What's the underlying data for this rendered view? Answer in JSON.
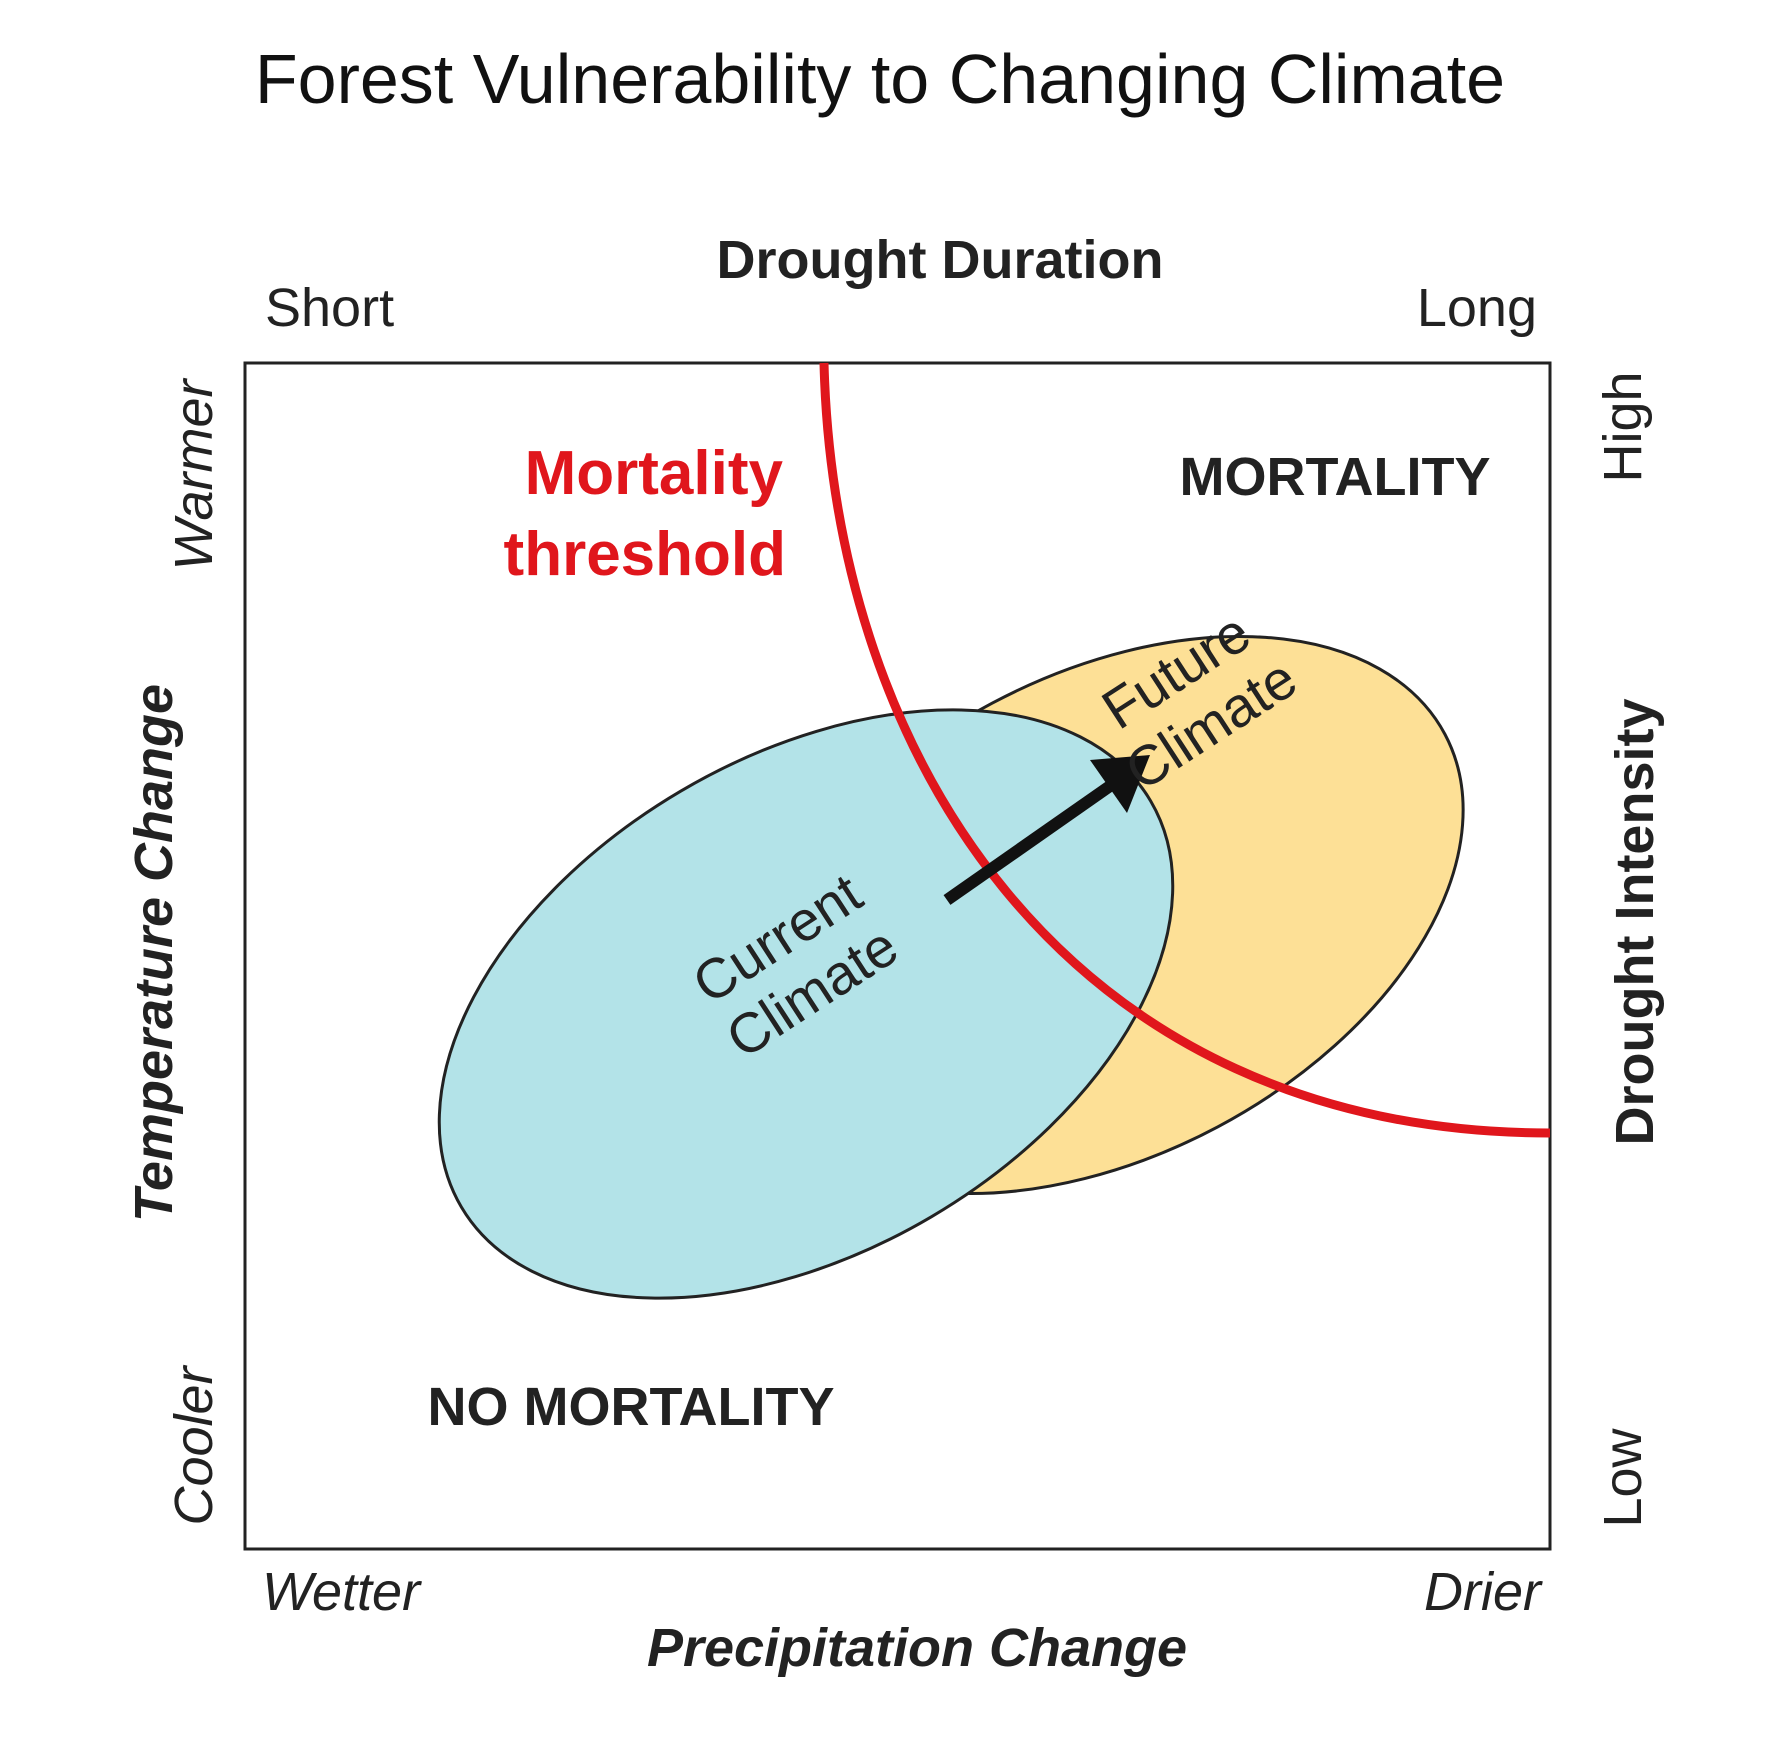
{
  "title": "Forest Vulnerability to Changing Climate",
  "colors": {
    "threshold": "#e0161c",
    "current_fill": "#b3e3e8",
    "future_fill": "#fde096",
    "outline": "#222222",
    "arrow": "#111111"
  },
  "top_axis": {
    "label": "Drought Duration",
    "left": "Short",
    "right": "Long"
  },
  "bottom_axis": {
    "label": "Precipitation Change",
    "left": "Wetter",
    "right": "Drier"
  },
  "left_axis": {
    "label": "Temperature Change",
    "top": "Warmer",
    "bottom": "Cooler"
  },
  "right_axis": {
    "label": "Drought Intensity",
    "top": "High",
    "bottom": "Low"
  },
  "threshold": {
    "line1": "Mortality",
    "line2": "threshold"
  },
  "regions": {
    "mortality": "MORTALITY",
    "no_mortality": "NO MORTALITY"
  },
  "current_climate": {
    "line1": "Current",
    "line2": "Climate"
  },
  "future_climate": {
    "line1": "Future",
    "line2": "Climate"
  },
  "icons": {
    "shift_arrow": "arrow-icon"
  }
}
